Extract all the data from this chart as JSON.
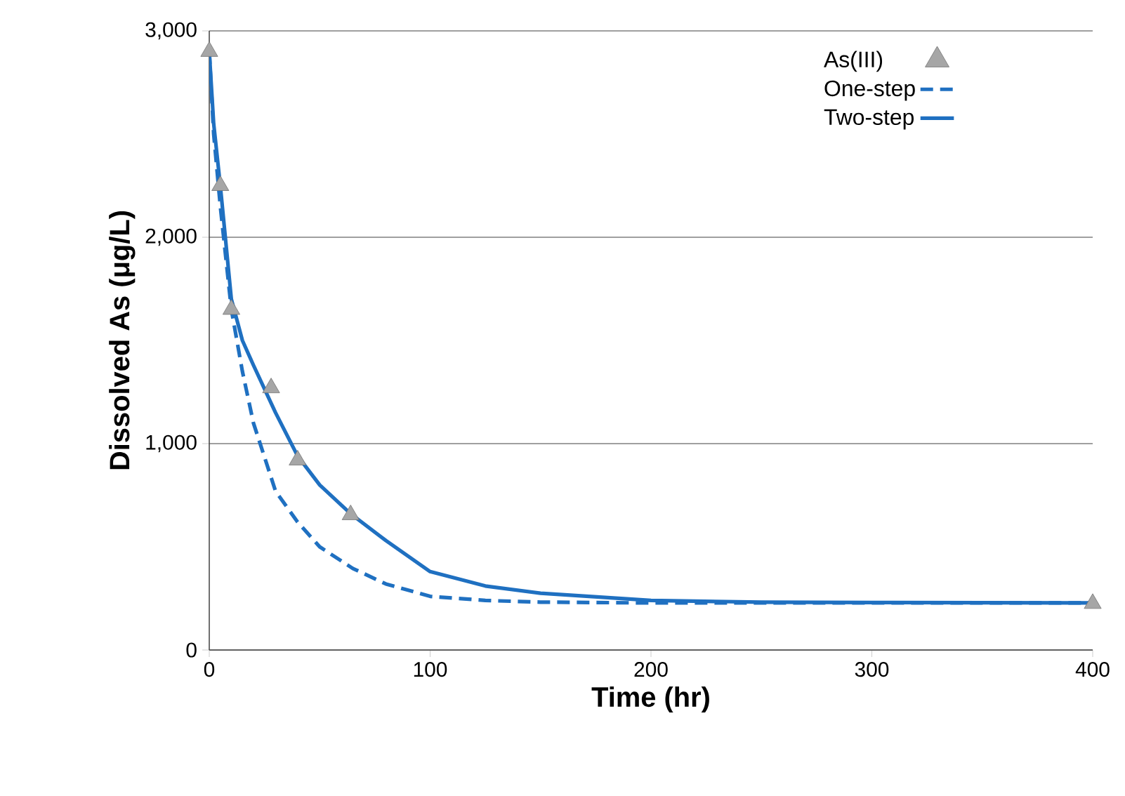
{
  "chart_data": {
    "type": "line",
    "xlabel": "Time (hr)",
    "ylabel": "Dissolved As (μg/L)",
    "xlim": [
      0,
      400
    ],
    "ylim": [
      0,
      3000
    ],
    "xticks": [
      0,
      100,
      200,
      300,
      400
    ],
    "yticks": [
      0,
      {
        "value": 1000,
        "label": "1,000"
      },
      {
        "value": 2000,
        "label": "2,000"
      },
      {
        "value": 3000,
        "label": "3,000"
      }
    ],
    "grid": "y",
    "legend": "top right",
    "series": [
      {
        "name": "As(III)",
        "type": "scatter",
        "marker": "triangle",
        "color": "#a6a6a6",
        "x": [
          0,
          5,
          10,
          28,
          40,
          64,
          400
        ],
        "values": [
          2900,
          2250,
          1650,
          1270,
          920,
          655,
          225
        ]
      },
      {
        "name": "One-step",
        "line_style": "dashed",
        "color": "#1f70c1",
        "x": [
          0,
          2,
          5,
          10,
          15,
          20,
          30,
          40,
          50,
          65,
          80,
          100,
          125,
          150,
          200,
          300,
          400
        ],
        "values": [
          2900,
          2500,
          2150,
          1650,
          1350,
          1100,
          770,
          620,
          500,
          395,
          320,
          260,
          240,
          232,
          228,
          228,
          228
        ]
      },
      {
        "name": "Two-step",
        "line_style": "solid",
        "color": "#1f70c1",
        "x": [
          0,
          2,
          5,
          10,
          15,
          20,
          30,
          40,
          50,
          64,
          80,
          100,
          125,
          150,
          200,
          250,
          300,
          400
        ],
        "values": [
          2900,
          2550,
          2250,
          1700,
          1500,
          1380,
          1150,
          940,
          800,
          660,
          530,
          380,
          310,
          275,
          240,
          232,
          230,
          228
        ]
      }
    ]
  }
}
